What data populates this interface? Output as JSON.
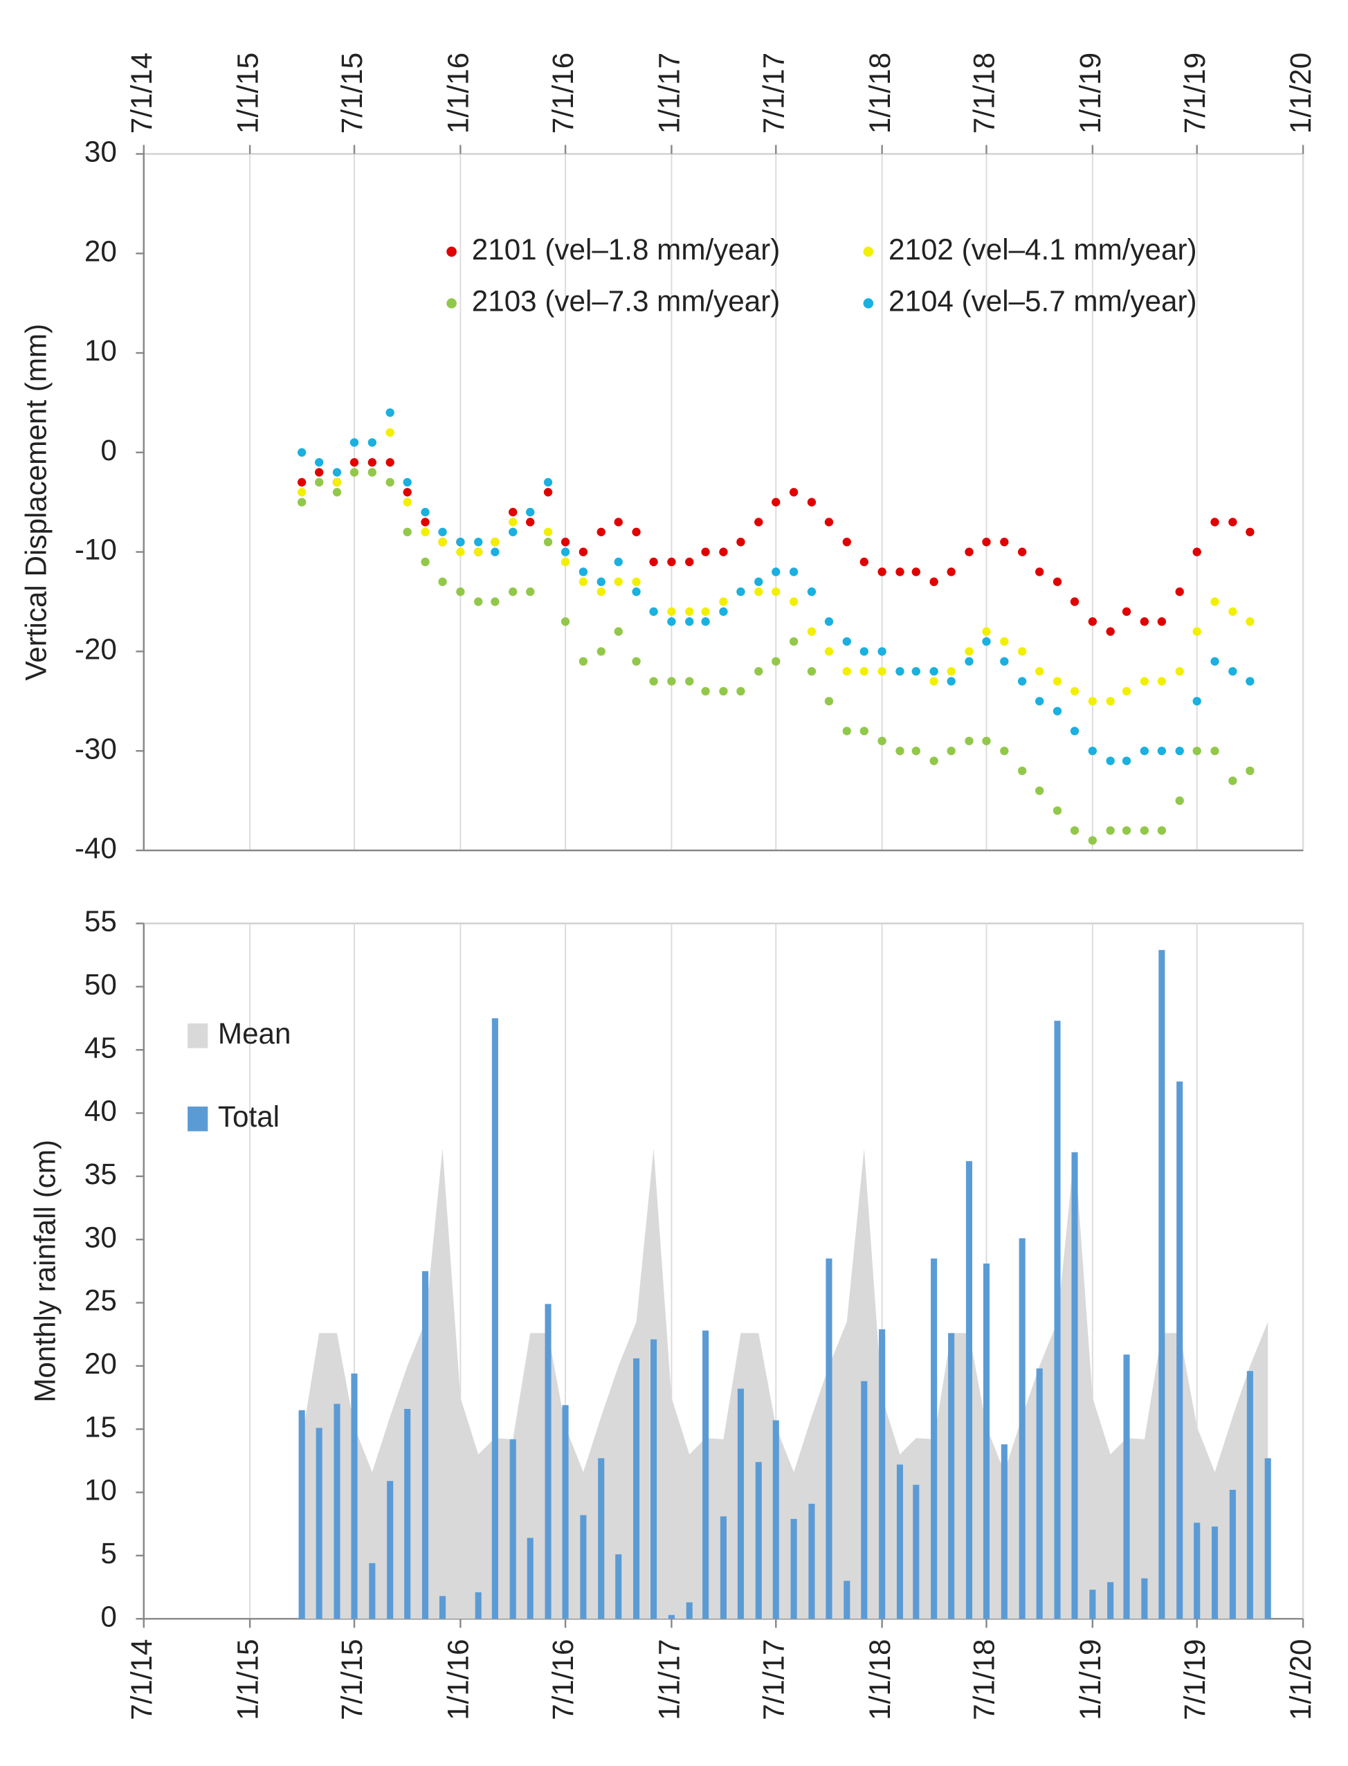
{
  "chart_data": [
    {
      "type": "scatter",
      "ylabel": "Vertical Displacement (mm)",
      "xlim": [
        "7/1/14",
        "1/1/20"
      ],
      "xticks": [
        "7/1/14",
        "1/1/15",
        "7/1/15",
        "1/1/16",
        "7/1/16",
        "1/1/17",
        "7/1/17",
        "1/1/18",
        "7/1/18",
        "1/1/19",
        "7/1/19",
        "1/1/20"
      ],
      "ylim": [
        -40,
        30
      ],
      "yticks": [
        -40,
        -30,
        -20,
        -10,
        0,
        10,
        20,
        30
      ],
      "grid": "x",
      "legend": "upper right",
      "x": [
        "4/1/15",
        "5/1/15",
        "6/1/15",
        "7/1/15",
        "8/1/15",
        "9/1/15",
        "10/1/15",
        "11/1/15",
        "12/1/15",
        "1/1/16",
        "2/1/16",
        "3/1/16",
        "4/1/16",
        "5/1/16",
        "6/1/16",
        "7/1/16",
        "8/1/16",
        "9/1/16",
        "10/1/16",
        "11/1/16",
        "12/1/16",
        "1/1/17",
        "2/1/17",
        "3/1/17",
        "4/1/17",
        "5/1/17",
        "6/1/17",
        "7/1/17",
        "8/1/17",
        "9/1/17",
        "10/1/17",
        "11/1/17",
        "12/1/17",
        "1/1/18",
        "2/1/18",
        "3/1/18",
        "4/1/18",
        "5/1/18",
        "6/1/18",
        "7/1/18",
        "8/1/18",
        "9/1/18",
        "10/1/18",
        "11/1/18",
        "12/1/18",
        "1/1/19",
        "2/1/19",
        "3/1/19",
        "4/1/19",
        "5/1/19",
        "6/1/19",
        "7/1/19",
        "8/1/19",
        "9/1/19",
        "10/1/19"
      ],
      "series": [
        {
          "name": "2101 (vel–1.8 mm/year)",
          "color": "#e00000",
          "values": [
            -3,
            -2,
            -3,
            -1,
            -1,
            -1,
            -4,
            -7,
            -9,
            -9,
            -10,
            -9,
            -6,
            -7,
            -4,
            -9,
            -10,
            -8,
            -7,
            -8,
            -11,
            -11,
            -11,
            -10,
            -10,
            -9,
            -7,
            -5,
            -4,
            -5,
            -7,
            -9,
            -11,
            -12,
            -12,
            -12,
            -13,
            -12,
            -10,
            -9,
            -9,
            -10,
            -12,
            -13,
            -15,
            -17,
            -18,
            -16,
            -17,
            -17,
            -14,
            -10,
            -7,
            -7,
            -8
          ]
        },
        {
          "name": "2102 (vel–4.1 mm/year)",
          "color": "#f2f000",
          "values": [
            -4,
            -3,
            -3,
            -2,
            -2,
            2,
            -5,
            -8,
            -9,
            -10,
            -10,
            -9,
            -7,
            -6,
            -8,
            -11,
            -13,
            -14,
            -13,
            -13,
            -16,
            -16,
            -16,
            -16,
            -15,
            -14,
            -14,
            -14,
            -15,
            -18,
            -20,
            -22,
            -22,
            -22,
            -22,
            -22,
            -23,
            -22,
            -20,
            -18,
            -19,
            -20,
            -22,
            -23,
            -24,
            -25,
            -25,
            -24,
            -23,
            -23,
            -22,
            -18,
            -15,
            -16,
            -17
          ]
        },
        {
          "name": "2103 (vel–7.3 mm/year)",
          "color": "#92c84a",
          "values": [
            -5,
            -3,
            -4,
            -2,
            -2,
            -3,
            -8,
            -11,
            -13,
            -14,
            -15,
            -15,
            -14,
            -14,
            -9,
            -17,
            -21,
            -20,
            -18,
            -21,
            -23,
            -23,
            -23,
            -24,
            -24,
            -24,
            -22,
            -21,
            -19,
            -22,
            -25,
            -28,
            -28,
            -29,
            -30,
            -30,
            -31,
            -30,
            -29,
            -29,
            -30,
            -32,
            -34,
            -36,
            -38,
            -39,
            -38,
            -38,
            -38,
            -38,
            -35,
            -30,
            -30,
            -33,
            -32
          ]
        },
        {
          "name": "2104 (vel–5.7 mm/year)",
          "color": "#1ab0e0",
          "values": [
            0,
            -1,
            -2,
            1,
            1,
            4,
            -3,
            -6,
            -8,
            -9,
            -9,
            -10,
            -8,
            -6,
            -3,
            -10,
            -12,
            -13,
            -11,
            -14,
            -16,
            -17,
            -17,
            -17,
            -16,
            -14,
            -13,
            -12,
            -12,
            -14,
            -17,
            -19,
            -20,
            -20,
            -22,
            -22,
            -22,
            -23,
            -21,
            -19,
            -21,
            -23,
            -25,
            -26,
            -28,
            -30,
            -31,
            -31,
            -30,
            -30,
            -30,
            -25,
            -21,
            -22,
            -23
          ]
        }
      ]
    },
    {
      "type": "bar",
      "ylabel": "Monthly rainfall (cm)",
      "xlim": [
        "7/1/14",
        "1/1/20"
      ],
      "xticks": [
        "7/1/14",
        "1/1/15",
        "7/1/15",
        "1/1/16",
        "7/1/16",
        "1/1/17",
        "7/1/17",
        "1/1/18",
        "7/1/18",
        "1/1/19",
        "7/1/19",
        "1/1/20"
      ],
      "ylim": [
        0,
        55
      ],
      "yticks": [
        0,
        5,
        10,
        15,
        20,
        25,
        30,
        35,
        40,
        45,
        50,
        55
      ],
      "grid": "x",
      "legend": "upper left",
      "x": [
        "4/1/15",
        "5/1/15",
        "6/1/15",
        "7/1/15",
        "8/1/15",
        "9/1/15",
        "10/1/15",
        "11/1/15",
        "12/1/15",
        "1/1/16",
        "2/1/16",
        "3/1/16",
        "4/1/16",
        "5/1/16",
        "6/1/16",
        "7/1/16",
        "8/1/16",
        "9/1/16",
        "10/1/16",
        "11/1/16",
        "12/1/16",
        "1/1/17",
        "2/1/17",
        "3/1/17",
        "4/1/17",
        "5/1/17",
        "6/1/17",
        "7/1/17",
        "8/1/17",
        "9/1/17",
        "10/1/17",
        "11/1/17",
        "12/1/17",
        "1/1/18",
        "2/1/18",
        "3/1/18",
        "4/1/18",
        "5/1/18",
        "6/1/18",
        "7/1/18",
        "8/1/18",
        "9/1/18",
        "10/1/18",
        "11/1/18",
        "12/1/18",
        "1/1/19",
        "2/1/19",
        "3/1/19",
        "4/1/19",
        "5/1/19",
        "6/1/19",
        "7/1/19",
        "8/1/19",
        "9/1/19",
        "10/1/19",
        "11/1/19"
      ],
      "series": [
        {
          "name": "Mean",
          "type": "area",
          "color": "#d9d9d9",
          "values": [
            14.2,
            22.6,
            22.6,
            15.2,
            11.6,
            16,
            20,
            23.5,
            37.2,
            17.5,
            13,
            14.3,
            14.2,
            22.6,
            22.6,
            15.2,
            11.6,
            16,
            20,
            23.5,
            37.2,
            17.5,
            13,
            14.3,
            14.2,
            22.6,
            22.6,
            15.2,
            11.6,
            16,
            20,
            23.5,
            37.2,
            17.5,
            13,
            14.3,
            14.2,
            22.6,
            22.6,
            15.2,
            11.6,
            16,
            20,
            23.5,
            37.2,
            17.5,
            13,
            14.3,
            14.2,
            22.6,
            22.6,
            15.2,
            11.6,
            16,
            20,
            23.5
          ]
        },
        {
          "name": "Total",
          "type": "bar",
          "color": "#5b9bd5",
          "values": [
            16.5,
            15.1,
            17,
            19.4,
            4.4,
            10.9,
            16.6,
            27.5,
            1.8,
            0,
            2.1,
            47.5,
            14.2,
            6.4,
            24.9,
            16.9,
            8.2,
            12.7,
            5.1,
            20.6,
            22.1,
            0.3,
            1.3,
            22.8,
            8.1,
            18.2,
            12.4,
            15.7,
            7.9,
            9.1,
            28.5,
            3,
            18.8,
            22.9,
            12.2,
            10.6,
            28.5,
            22.6,
            36.2,
            28.1,
            13.8,
            30.1,
            19.8,
            47.3,
            36.9,
            2.3,
            2.9,
            20.9,
            3.2,
            52.9,
            42.5,
            7.6,
            7.3,
            10.2,
            19.6,
            12.7
          ]
        }
      ]
    }
  ]
}
